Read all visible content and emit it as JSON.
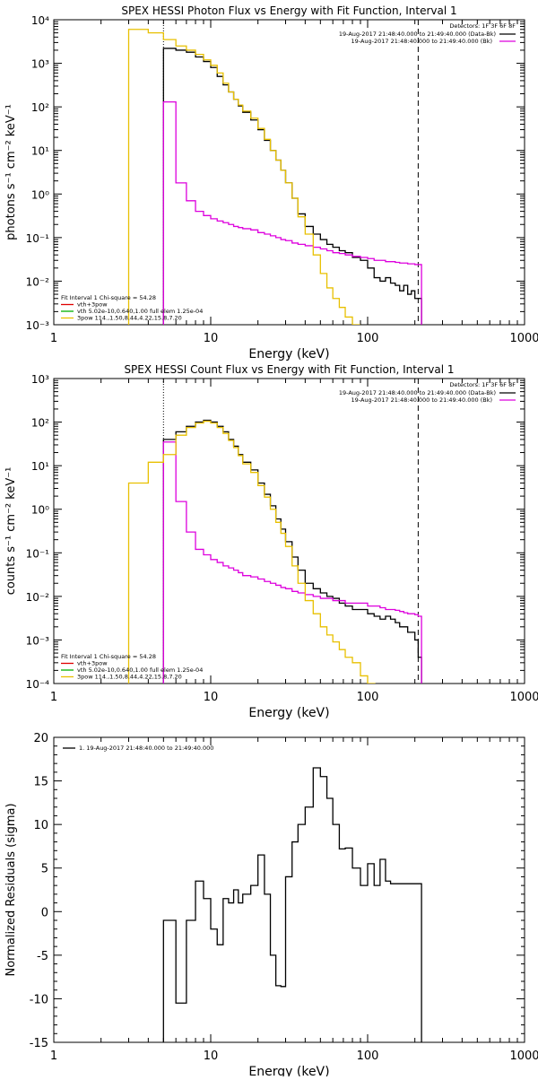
{
  "chart_data": [
    {
      "type": "line",
      "title": "SPEX HESSI Photon Flux vs Energy with Fit Function, Interval 1",
      "xlabel": "Energy (keV)",
      "ylabel": "photons s⁻¹ cm⁻² keV⁻¹",
      "xscale": "log",
      "yscale": "log",
      "xlim": [
        1,
        1000
      ],
      "ylim": [
        0.001,
        10000
      ],
      "x_ticks": [
        "1",
        "10",
        "100",
        "1000"
      ],
      "y_ticks": [
        "10⁻³",
        "10⁻²",
        "10⁻¹",
        "10⁰",
        "10¹",
        "10²",
        "10³",
        "10⁴"
      ],
      "legend_position": "top-right",
      "legend": {
        "header": "Detectors: 1F 3F 6F 8F",
        "entries": [
          {
            "text": "19-Aug-2017 21:48:40.000 to 21:49:40.000 (Data-Bk)",
            "color": "#000000"
          },
          {
            "text": "19-Aug-2017 21:48:40.000 to 21:49:40.000 (Bk)",
            "color": "#dd00dd"
          }
        ]
      },
      "fit_info": {
        "header": "Fit Interval 1   Chi-square = 54.28",
        "entries": [
          {
            "text": "vth+3pow",
            "color": "#e00000"
          },
          {
            "text": "vth 5.02e-10,0.640,1.00  full elem 1.25e-04",
            "color": "#00b000"
          },
          {
            "text": "3pow 114.,1.50,8.44,4.22,15.8,7.20",
            "color": "#e8c000"
          }
        ]
      },
      "vlines": [
        {
          "x": 5,
          "style": "dotted"
        },
        {
          "x": 210,
          "style": "dashed"
        }
      ],
      "series": [
        {
          "color": "#000000",
          "x": [
            5,
            6,
            7,
            8,
            9,
            10,
            11,
            12,
            13,
            14,
            15,
            16,
            18,
            20,
            22,
            24,
            26,
            28,
            30,
            33,
            36,
            40,
            45,
            50,
            55,
            60,
            66,
            72,
            80,
            90,
            100,
            110,
            120,
            130,
            140,
            150,
            160,
            170,
            180,
            190,
            200,
            210
          ],
          "y": [
            2200,
            2000,
            1800,
            1400,
            1100,
            800,
            500,
            320,
            220,
            150,
            105,
            75,
            50,
            30,
            17,
            10,
            6.0,
            3.5,
            1.8,
            0.8,
            0.35,
            0.18,
            0.12,
            0.09,
            0.07,
            0.06,
            0.05,
            0.045,
            0.035,
            0.03,
            0.02,
            0.012,
            0.01,
            0.012,
            0.009,
            0.008,
            0.006,
            0.008,
            0.005,
            0.006,
            0.004,
            0.004
          ]
        },
        {
          "color": "#dd00dd",
          "x": [
            5,
            6,
            7,
            8,
            9,
            10,
            11,
            12,
            13,
            14,
            15,
            16,
            18,
            20,
            22,
            24,
            26,
            28,
            30,
            33,
            36,
            40,
            45,
            50,
            55,
            60,
            66,
            72,
            80,
            90,
            100,
            110,
            120,
            130,
            140,
            150,
            160,
            170,
            180,
            190,
            200,
            210
          ],
          "y": [
            130,
            1.8,
            0.7,
            0.4,
            0.32,
            0.27,
            0.24,
            0.22,
            0.2,
            0.18,
            0.17,
            0.16,
            0.15,
            0.13,
            0.12,
            0.11,
            0.1,
            0.09,
            0.085,
            0.075,
            0.07,
            0.065,
            0.06,
            0.055,
            0.05,
            0.045,
            0.043,
            0.04,
            0.037,
            0.035,
            0.033,
            0.03,
            0.03,
            0.028,
            0.028,
            0.027,
            0.026,
            0.026,
            0.025,
            0.025,
            0.024,
            0.024
          ]
        },
        {
          "color": "#e8c000",
          "x": [
            3,
            4,
            5,
            6,
            7,
            8,
            9,
            10,
            11,
            12,
            13,
            14,
            15,
            16,
            18,
            20,
            22,
            24,
            26,
            28,
            30,
            33,
            36,
            40,
            45,
            50,
            55,
            60,
            66,
            72,
            80
          ],
          "y": [
            6000,
            5000,
            3500,
            2500,
            2000,
            1600,
            1200,
            900,
            600,
            350,
            220,
            150,
            110,
            80,
            55,
            32,
            18,
            10,
            6.0,
            3.5,
            1.8,
            0.8,
            0.3,
            0.12,
            0.04,
            0.015,
            0.007,
            0.004,
            0.0025,
            0.0015,
            0.001
          ]
        }
      ]
    },
    {
      "type": "line",
      "title": "SPEX HESSI Count Flux vs Energy with Fit Function, Interval 1",
      "xlabel": "Energy (keV)",
      "ylabel": "counts s⁻¹ cm⁻² keV⁻¹",
      "xscale": "log",
      "yscale": "log",
      "xlim": [
        1,
        1000
      ],
      "ylim": [
        0.0001,
        1000
      ],
      "x_ticks": [
        "1",
        "10",
        "100",
        "1000"
      ],
      "y_ticks": [
        "10⁻⁴",
        "10⁻³",
        "10⁻²",
        "10⁻¹",
        "10⁰",
        "10¹",
        "10²",
        "10³"
      ],
      "legend_position": "top-right",
      "legend": {
        "header": "Detectors: 1F 3F 6F 8F",
        "entries": [
          {
            "text": "19-Aug-2017 21:48:40.000 to 21:49:40.000 (Data-Bk)",
            "color": "#000000"
          },
          {
            "text": "19-Aug-2017 21:48:40.000 to 21:49:40.000 (Bk)",
            "color": "#dd00dd"
          }
        ]
      },
      "fit_info": {
        "header": "Fit Interval 1   Chi-square = 54.28",
        "entries": [
          {
            "text": "vth+3pow",
            "color": "#e00000"
          },
          {
            "text": "vth 5.02e-10,0.640,1.00  full elem 1.25e-04",
            "color": "#00b000"
          },
          {
            "text": "3pow 114.,1.50,8.44,4.22,15.8,7.20",
            "color": "#e8c000"
          }
        ]
      },
      "vlines": [
        {
          "x": 5,
          "style": "dotted"
        },
        {
          "x": 210,
          "style": "dashed"
        }
      ],
      "series": [
        {
          "color": "#000000",
          "x": [
            5,
            6,
            7,
            8,
            9,
            10,
            11,
            12,
            13,
            14,
            15,
            16,
            18,
            20,
            22,
            24,
            26,
            28,
            30,
            33,
            36,
            40,
            45,
            50,
            55,
            60,
            66,
            72,
            80,
            90,
            100,
            110,
            120,
            130,
            140,
            150,
            160,
            170,
            180,
            190,
            200,
            210
          ],
          "y": [
            40,
            60,
            80,
            100,
            110,
            100,
            80,
            60,
            40,
            28,
            18,
            12,
            8,
            4.0,
            2.2,
            1.2,
            0.6,
            0.35,
            0.18,
            0.08,
            0.04,
            0.02,
            0.015,
            0.012,
            0.01,
            0.009,
            0.007,
            0.006,
            0.005,
            0.005,
            0.004,
            0.0035,
            0.003,
            0.0035,
            0.003,
            0.0025,
            0.002,
            0.002,
            0.0015,
            0.0015,
            0.001,
            0.0004
          ]
        },
        {
          "color": "#dd00dd",
          "x": [
            5,
            6,
            7,
            8,
            9,
            10,
            11,
            12,
            13,
            14,
            15,
            16,
            18,
            20,
            22,
            24,
            26,
            28,
            30,
            33,
            36,
            40,
            45,
            50,
            55,
            60,
            66,
            72,
            80,
            90,
            100,
            110,
            120,
            130,
            140,
            150,
            160,
            170,
            180,
            190,
            200,
            210
          ],
          "y": [
            35,
            1.5,
            0.3,
            0.12,
            0.09,
            0.07,
            0.06,
            0.05,
            0.045,
            0.04,
            0.035,
            0.03,
            0.028,
            0.025,
            0.022,
            0.02,
            0.018,
            0.016,
            0.015,
            0.013,
            0.012,
            0.011,
            0.01,
            0.009,
            0.009,
            0.008,
            0.008,
            0.007,
            0.007,
            0.007,
            0.006,
            0.006,
            0.0055,
            0.005,
            0.005,
            0.0048,
            0.0045,
            0.0042,
            0.004,
            0.004,
            0.0038,
            0.0035
          ]
        },
        {
          "color": "#e8c000",
          "x": [
            3,
            4,
            5,
            6,
            7,
            8,
            9,
            10,
            11,
            12,
            13,
            14,
            15,
            16,
            18,
            20,
            22,
            24,
            26,
            28,
            30,
            33,
            36,
            40,
            45,
            50,
            55,
            60,
            66,
            72,
            80,
            90,
            100
          ],
          "y": [
            4,
            12,
            18,
            50,
            75,
            95,
            105,
            95,
            75,
            55,
            38,
            26,
            17,
            11,
            7,
            3.5,
            1.9,
            1.0,
            0.5,
            0.28,
            0.14,
            0.05,
            0.02,
            0.008,
            0.004,
            0.002,
            0.0013,
            0.0009,
            0.0006,
            0.0004,
            0.0003,
            0.00015,
            0.0001
          ]
        }
      ]
    },
    {
      "type": "line",
      "title": "",
      "xlabel": "Energy (keV)",
      "ylabel": "Normalized Residuals (sigma)",
      "xscale": "log",
      "yscale": "linear",
      "xlim": [
        1,
        1000
      ],
      "ylim": [
        -15,
        20
      ],
      "x_ticks": [
        "1",
        "10",
        "100",
        "1000"
      ],
      "y_ticks": [
        "-15",
        "-10",
        "-5",
        "0",
        "5",
        "10",
        "15",
        "20"
      ],
      "legend_position": "top-left",
      "legend": {
        "header": "",
        "entries": [
          {
            "text": "1. 19-Aug-2017 21:48:40.000 to 21:49:40.000",
            "color": "#000000"
          }
        ]
      },
      "series": [
        {
          "color": "#000000",
          "x": [
            5,
            6,
            7,
            8,
            9,
            10,
            11,
            12,
            13,
            14,
            15,
            16,
            18,
            20,
            22,
            24,
            26,
            28,
            30,
            33,
            36,
            40,
            45,
            50,
            55,
            60,
            66,
            72,
            80,
            90,
            100,
            110,
            120,
            130,
            140,
            150,
            160,
            170,
            180,
            190,
            200,
            210
          ],
          "y": [
            -1,
            -10.5,
            -1,
            3.5,
            1.5,
            -2,
            -3.8,
            1.5,
            1,
            2.5,
            1,
            2,
            3,
            6.5,
            2,
            -5,
            -8.5,
            -8.6,
            4,
            8,
            10,
            12,
            16.5,
            15.5,
            13,
            10,
            7.2,
            7.3,
            5,
            3,
            5.5,
            3,
            6,
            3.5,
            3.2,
            3.2,
            3.2,
            3.2,
            3.2,
            3.2,
            3.2,
            3.2
          ]
        }
      ]
    }
  ]
}
